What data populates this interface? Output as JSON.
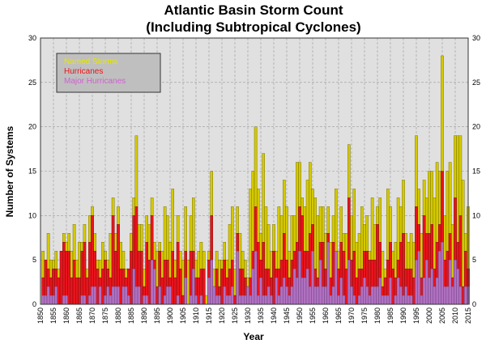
{
  "chart_data": {
    "type": "bar",
    "title": "Atlantic Basin Storm Count",
    "subtitle": "(Including Subtropical Cyclones)",
    "xlabel": "Year",
    "ylabel": "Number of Systems",
    "xlim": [
      1850,
      2015
    ],
    "ylim": [
      0,
      30
    ],
    "yticks": [
      "0",
      "5",
      "10",
      "15",
      "20",
      "25",
      "30"
    ],
    "xticks": [
      "1850",
      "1855",
      "1860",
      "1865",
      "1870",
      "1875",
      "1880",
      "1885",
      "1890",
      "1895",
      "1900",
      "1905",
      "1910",
      "1915",
      "1920",
      "1925",
      "1930",
      "1935",
      "1940",
      "1945",
      "1950",
      "1955",
      "1960",
      "1965",
      "1970",
      "1975",
      "1980",
      "1985",
      "1990",
      "1995",
      "2000",
      "2005",
      "2010",
      "2015"
    ],
    "grid": true,
    "legend_position": "top-left",
    "start_year": 1851,
    "series": [
      {
        "name": "Named Storms",
        "color": "#d4c800",
        "values": [
          6,
          5,
          8,
          5,
          5,
          6,
          4,
          6,
          8,
          7,
          8,
          6,
          9,
          5,
          7,
          7,
          9,
          4,
          10,
          11,
          8,
          5,
          5,
          7,
          6,
          5,
          8,
          12,
          8,
          11,
          7,
          6,
          4,
          4,
          8,
          12,
          19,
          9,
          9,
          4,
          10,
          9,
          12,
          7,
          6,
          7,
          6,
          11,
          10,
          7,
          13,
          5,
          10,
          6,
          5,
          11,
          5,
          10,
          12,
          5,
          6,
          7,
          6,
          1,
          6,
          15,
          4,
          6,
          5,
          5,
          7,
          5,
          9,
          11,
          4,
          11,
          8,
          6,
          5,
          3,
          13,
          15,
          20,
          13,
          8,
          17,
          11,
          9,
          6,
          9,
          6,
          11,
          10,
          14,
          11,
          6,
          10,
          10,
          16,
          16,
          12,
          11,
          14,
          16,
          13,
          12,
          10,
          11,
          11,
          8,
          11,
          7,
          10,
          13,
          6,
          11,
          8,
          8,
          18,
          10,
          13,
          7,
          8,
          11,
          9,
          10,
          6,
          12,
          9,
          11,
          12,
          6,
          4,
          13,
          11,
          6,
          7,
          12,
          11,
          14,
          8,
          7,
          8,
          7,
          19,
          13,
          8,
          14,
          12,
          15,
          15,
          12,
          16,
          15,
          28,
          10,
          15,
          16,
          9,
          19,
          19,
          19,
          14,
          8,
          11
        ]
      },
      {
        "name": "Hurricanes",
        "color": "#e8141c",
        "values": [
          3,
          5,
          4,
          3,
          4,
          4,
          3,
          6,
          7,
          6,
          6,
          3,
          5,
          3,
          3,
          6,
          7,
          3,
          7,
          10,
          6,
          4,
          3,
          4,
          5,
          4,
          3,
          10,
          6,
          9,
          4,
          4,
          3,
          4,
          6,
          10,
          11,
          6,
          6,
          2,
          7,
          5,
          10,
          5,
          2,
          6,
          3,
          5,
          5,
          3,
          6,
          3,
          7,
          4,
          1,
          6,
          0,
          6,
          6,
          3,
          3,
          4,
          4,
          0,
          5,
          10,
          2,
          4,
          2,
          4,
          5,
          3,
          4,
          5,
          1,
          8,
          4,
          4,
          3,
          2,
          3,
          6,
          11,
          7,
          5,
          7,
          4,
          4,
          3,
          6,
          4,
          4,
          5,
          8,
          5,
          3,
          5,
          6,
          7,
          11,
          10,
          6,
          6,
          8,
          9,
          4,
          3,
          7,
          7,
          4,
          8,
          3,
          7,
          6,
          4,
          7,
          6,
          4,
          12,
          5,
          6,
          3,
          4,
          4,
          6,
          6,
          5,
          5,
          5,
          9,
          7,
          2,
          3,
          5,
          7,
          4,
          3,
          5,
          7,
          8,
          4,
          4,
          4,
          3,
          11,
          9,
          3,
          10,
          8,
          8,
          9,
          4,
          7,
          9,
          15,
          5,
          6,
          8,
          3,
          12,
          7,
          10,
          2,
          6,
          4
        ]
      },
      {
        "name": "Major Hurricanes",
        "color": "#b070c0",
        "values": [
          1,
          1,
          2,
          1,
          1,
          2,
          0,
          0,
          1,
          1,
          0,
          0,
          0,
          0,
          0,
          1,
          1,
          0,
          1,
          2,
          2,
          0,
          2,
          0,
          1,
          2,
          1,
          2,
          2,
          2,
          0,
          2,
          2,
          1,
          0,
          4,
          2,
          2,
          0,
          1,
          1,
          0,
          5,
          4,
          0,
          2,
          0,
          1,
          2,
          2,
          0,
          0,
          1,
          0,
          0,
          3,
          0,
          1,
          4,
          1,
          0,
          1,
          0,
          0,
          3,
          5,
          2,
          1,
          1,
          0,
          2,
          1,
          1,
          2,
          0,
          6,
          1,
          1,
          1,
          2,
          1,
          4,
          6,
          1,
          3,
          1,
          1,
          2,
          1,
          0,
          3,
          1,
          2,
          3,
          2,
          1,
          2,
          4,
          3,
          6,
          3,
          3,
          4,
          2,
          6,
          2,
          2,
          5,
          2,
          2,
          7,
          1,
          2,
          6,
          1,
          3,
          1,
          0,
          5,
          2,
          1,
          0,
          1,
          2,
          3,
          2,
          1,
          2,
          2,
          2,
          3,
          1,
          1,
          1,
          3,
          0,
          1,
          3,
          2,
          1,
          2,
          1,
          1,
          0,
          5,
          6,
          1,
          3,
          5,
          3,
          4,
          2,
          3,
          6,
          7,
          2,
          2,
          5,
          2,
          5,
          4,
          2,
          0,
          2,
          2
        ]
      }
    ]
  }
}
